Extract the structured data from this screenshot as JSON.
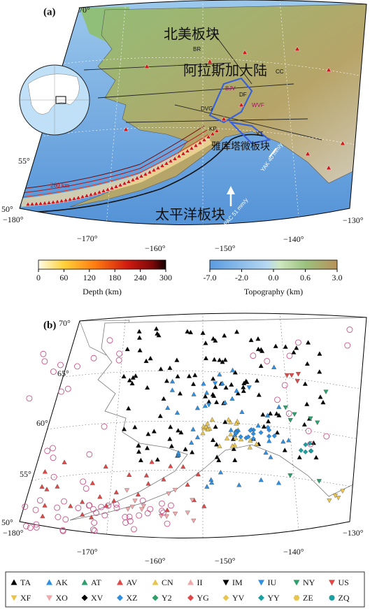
{
  "panel_a": {
    "label": "(a)",
    "lat_labels": [
      "70°",
      "55°",
      "50°"
    ],
    "lon_labels": [
      "−180°",
      "−170°",
      "−160°",
      "−150°",
      "−140°",
      "−130°"
    ],
    "places": [
      "北美板块",
      "BR",
      "阿拉斯加大陆",
      "CC",
      "BJV",
      "DF",
      "WVF",
      "DVG",
      "KP",
      "YT",
      "雅库塔微板块",
      "YAK 40 mm/y",
      "260 km",
      "太平洋板块",
      "PAC 51 mm/y"
    ]
  },
  "depth_colorbar": {
    "title": "Depth (km)",
    "ticks": [
      "0",
      "60",
      "120",
      "180",
      "240",
      "300"
    ]
  },
  "topo_colorbar": {
    "title": "Topography (km)",
    "ticks": [
      "-7.0",
      "-2.0",
      "0.0",
      "0.6",
      "3.0"
    ]
  },
  "panel_b": {
    "label": "(b)",
    "lat_labels": [
      "70°",
      "65°",
      "60°",
      "55°",
      "50°"
    ],
    "lon_labels": [
      "−180°",
      "−170°",
      "−160°",
      "−150°",
      "−140°",
      "−130°"
    ]
  },
  "legend": [
    {
      "name": "TA",
      "symbol": "up",
      "color": "#000000"
    },
    {
      "name": "AK",
      "symbol": "up",
      "color": "#2f8fe0"
    },
    {
      "name": "AT",
      "symbol": "up",
      "color": "#2e9e6a"
    },
    {
      "name": "AV",
      "symbol": "up",
      "color": "#e04848"
    },
    {
      "name": "CN",
      "symbol": "up",
      "color": "#e8c450"
    },
    {
      "name": "II",
      "symbol": "up",
      "color": "#f0a8a8"
    },
    {
      "name": "IM",
      "symbol": "down",
      "color": "#000000"
    },
    {
      "name": "IU",
      "symbol": "down",
      "color": "#2f8fe0"
    },
    {
      "name": "NY",
      "symbol": "down",
      "color": "#2e9e6a"
    },
    {
      "name": "US",
      "symbol": "down",
      "color": "#e04848"
    },
    {
      "name": "XF",
      "symbol": "down",
      "color": "#e8c450"
    },
    {
      "name": "XO",
      "symbol": "down",
      "color": "#f0a8a8"
    },
    {
      "name": "XV",
      "symbol": "diamond",
      "color": "#000000"
    },
    {
      "name": "XZ",
      "symbol": "diamond",
      "color": "#2f8fe0"
    },
    {
      "name": "Y2",
      "symbol": "diamond",
      "color": "#2e9e6a"
    },
    {
      "name": "YG",
      "symbol": "diamond",
      "color": "#e04848"
    },
    {
      "name": "YV",
      "symbol": "diamond",
      "color": "#e8c450"
    },
    {
      "name": "YY",
      "symbol": "diamond",
      "color": "#1aa0a0"
    },
    {
      "name": "ZE",
      "symbol": "hexagon",
      "color": "#e8c450"
    },
    {
      "name": "ZQ",
      "symbol": "circle",
      "color": "#1aa0a0"
    }
  ]
}
